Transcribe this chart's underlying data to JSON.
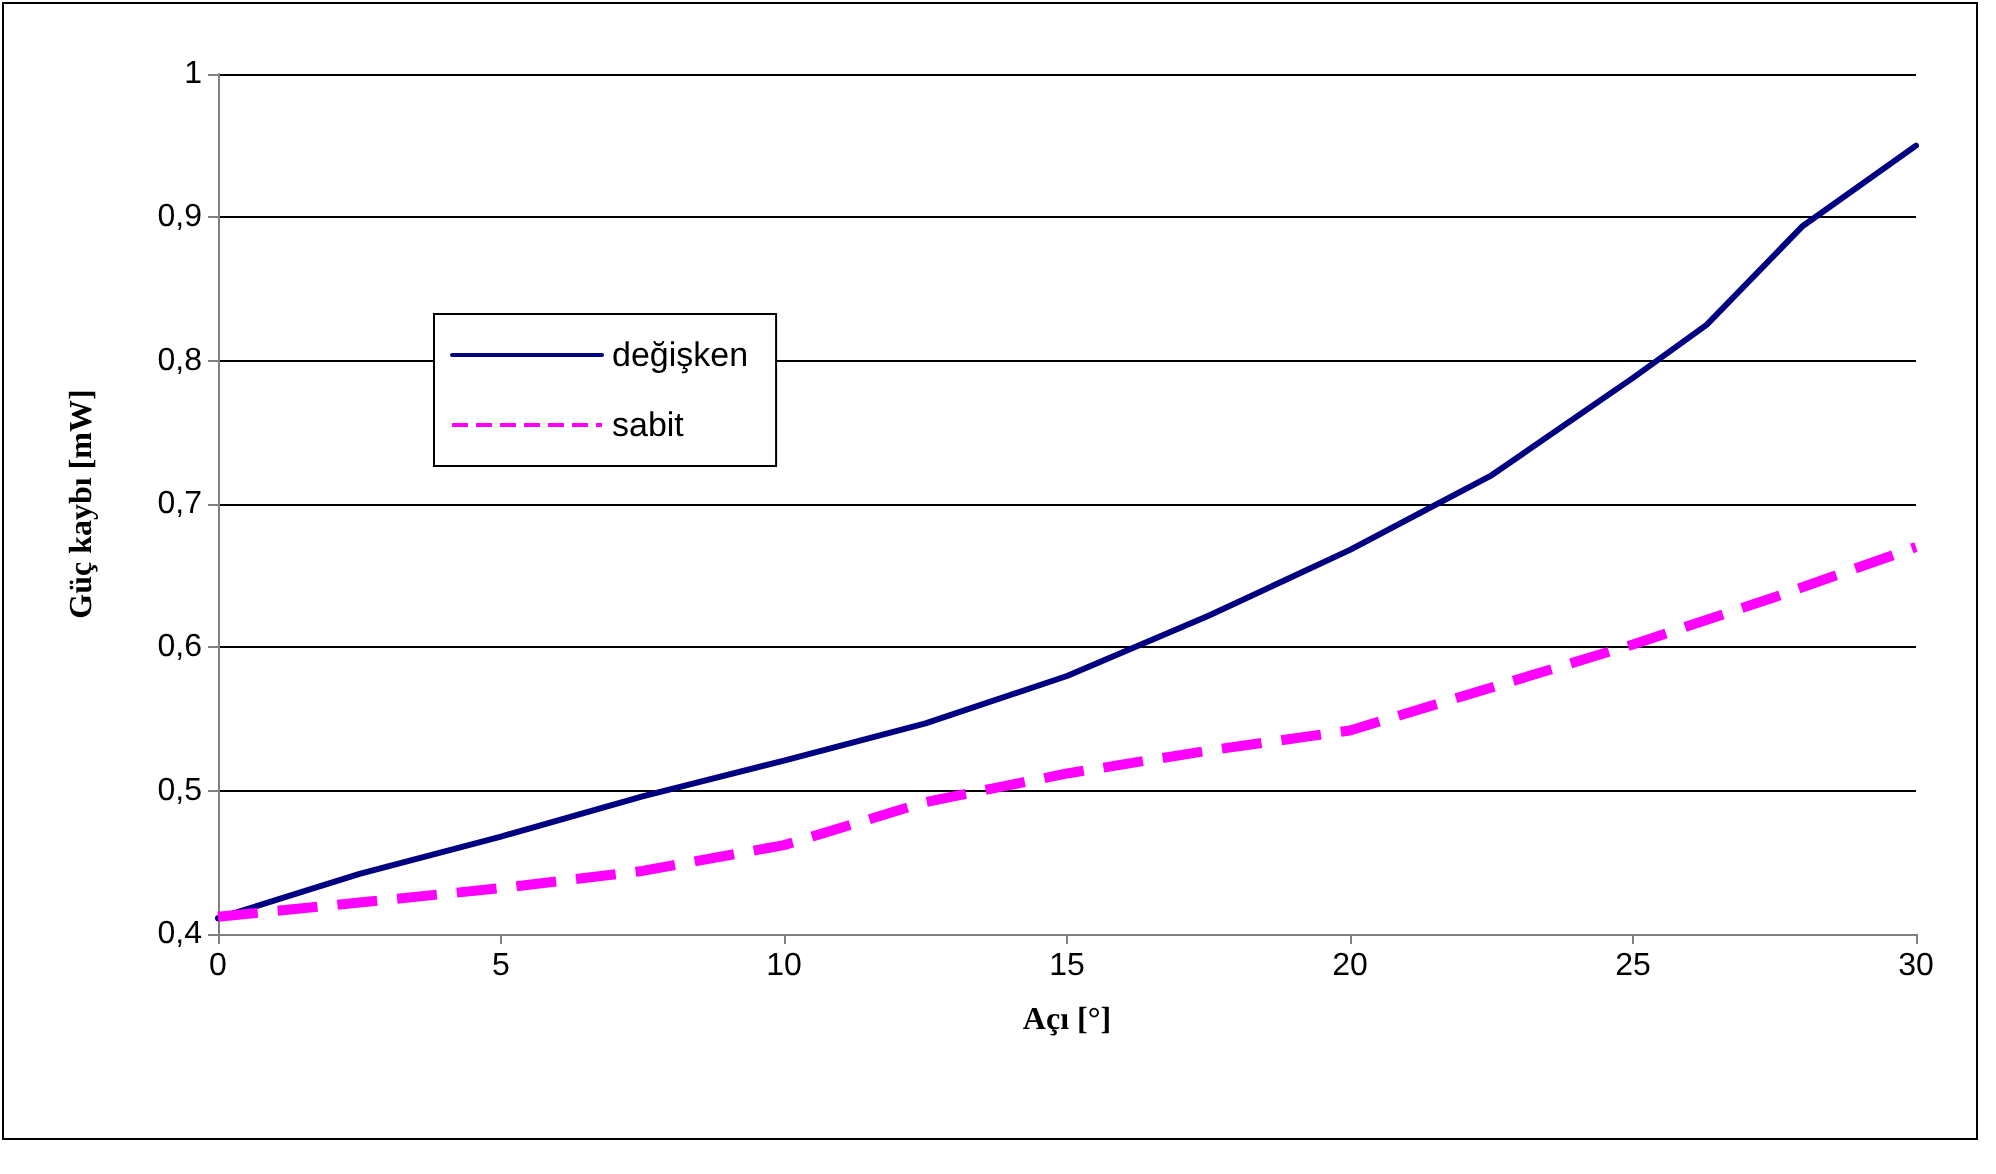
{
  "chart_data": {
    "type": "line",
    "xlabel": "Açı [°]",
    "ylabel": "Güç kaybı [mW]",
    "x": [
      0,
      2.5,
      5,
      7.5,
      10,
      12.5,
      15,
      17.5,
      20,
      22.5,
      25,
      26.3,
      28,
      30
    ],
    "series": [
      {
        "name": "değişken",
        "color": "#000080",
        "line_style": "solid",
        "values": [
          0.411,
          0.442,
          0.468,
          0.496,
          0.521,
          0.547,
          0.58,
          0.622,
          0.668,
          0.72,
          0.788,
          0.825,
          0.894,
          0.95
        ]
      },
      {
        "name": "sabit",
        "color": "#ff00ff",
        "line_style": "dashed",
        "x": [
          0,
          2.5,
          5,
          7.5,
          10,
          12.5,
          15,
          17.5,
          20,
          22.5,
          25,
          27.5,
          30
        ],
        "values": [
          0.412,
          0.422,
          0.432,
          0.444,
          0.462,
          0.492,
          0.512,
          0.528,
          0.542,
          0.572,
          0.602,
          0.635,
          0.67
        ]
      }
    ],
    "xlim": [
      0,
      30
    ],
    "xticks": [
      0,
      5,
      10,
      15,
      20,
      25,
      30
    ],
    "ylim": [
      0.4,
      1
    ],
    "yticks": [
      {
        "value": 0.4,
        "label": "0,4"
      },
      {
        "value": 0.5,
        "label": "0,5"
      },
      {
        "value": 0.6,
        "label": "0,6"
      },
      {
        "value": 0.7,
        "label": "0,7"
      },
      {
        "value": 0.8,
        "label": "0,8"
      },
      {
        "value": 0.9,
        "label": "0,9"
      },
      1
    ],
    "grid": "y",
    "legend": "top left",
    "marker": "none"
  }
}
